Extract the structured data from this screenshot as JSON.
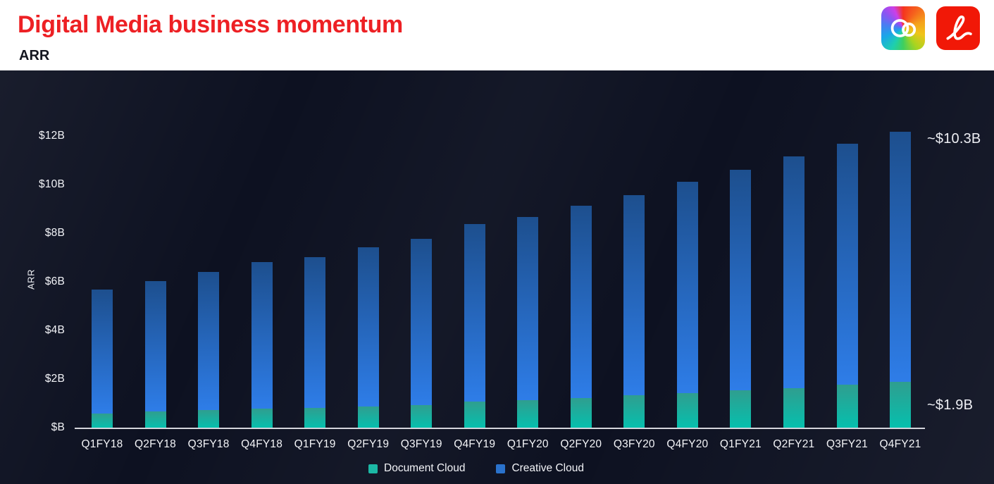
{
  "header": {
    "title": "Digital Media business momentum",
    "subtitle": "ARR",
    "title_color": "#ED2024",
    "acrobat_color": "#F11807",
    "logos": [
      "creative-cloud",
      "acrobat"
    ]
  },
  "chart_data": {
    "type": "bar",
    "stacked": true,
    "title": "Digital Media business momentum",
    "xlabel": "",
    "ylabel": "ARR",
    "ylim": [
      0,
      12.5
    ],
    "grid": false,
    "legend_position": "bottom",
    "background_color": "#0d1121",
    "categories": [
      "Q1FY18",
      "Q2FY18",
      "Q3FY18",
      "Q4FY18",
      "Q1FY19",
      "Q2FY19",
      "Q3FY19",
      "Q4FY19",
      "Q1FY20",
      "Q2FY20",
      "Q3FY20",
      "Q4FY20",
      "Q1FY21",
      "Q2FY21",
      "Q3FY21",
      "Q4FY21"
    ],
    "series": [
      {
        "name": "Document Cloud",
        "unit": "billions USD",
        "legend_color": "#1cb8a5",
        "color_top": "#2f9e8f",
        "color_bottom": "#05c0ae",
        "values": [
          0.6,
          0.7,
          0.75,
          0.8,
          0.85,
          0.9,
          0.95,
          1.1,
          1.15,
          1.25,
          1.35,
          1.45,
          1.55,
          1.65,
          1.8,
          1.9
        ]
      },
      {
        "name": "Creative Cloud",
        "unit": "billions USD",
        "legend_color": "#2a72cc",
        "color_top": "#1d4f8e",
        "color_bottom": "#2e7de8",
        "values": [
          5.1,
          5.35,
          5.7,
          6.05,
          6.2,
          6.55,
          6.85,
          7.3,
          7.55,
          7.9,
          8.25,
          8.7,
          9.1,
          9.55,
          9.9,
          10.3
        ]
      }
    ],
    "y_ticks": [
      {
        "label": "$12B",
        "value": 12
      },
      {
        "label": "$10B",
        "value": 10
      },
      {
        "label": "$8B",
        "value": 8
      },
      {
        "label": "$6B",
        "value": 6
      },
      {
        "label": "$4B",
        "value": 4
      },
      {
        "label": "$2B",
        "value": 2
      },
      {
        "label": "$B",
        "value": 0
      }
    ],
    "annotations": [
      {
        "text": "~$10.3B",
        "series": "Creative Cloud",
        "position": "top of Q4FY21 bar"
      },
      {
        "text": "~$1.9B",
        "series": "Document Cloud",
        "position": "right of Q4FY21 teal segment"
      }
    ]
  }
}
